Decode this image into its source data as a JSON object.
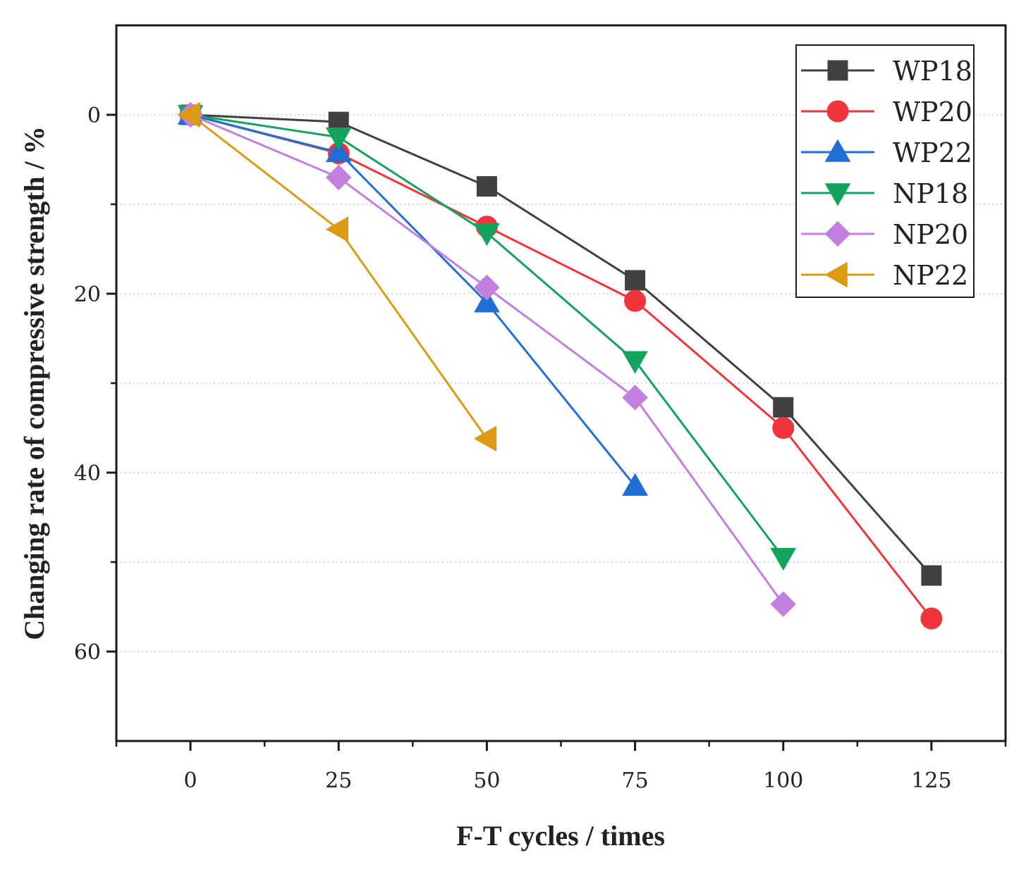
{
  "chart_data": {
    "type": "line",
    "title": "",
    "xlabel": "F-T cycles / times",
    "ylabel": "Changing rate of compressive strength / %",
    "xlim": [
      -12.5,
      137.5
    ],
    "ylim": [
      -10,
      70
    ],
    "y_inverted": true,
    "x_ticks": [
      0,
      25,
      50,
      75,
      100,
      125
    ],
    "x_tick_labels": [
      "0",
      "25",
      "50",
      "75",
      "100",
      "125"
    ],
    "y_ticks": [
      0,
      20,
      40,
      60
    ],
    "y_tick_labels": [
      "0",
      "20",
      "40",
      "60"
    ],
    "gridlines_y": [
      0,
      10,
      20,
      30,
      40,
      50,
      60
    ],
    "grid": "horizontal dotted",
    "legend_position": "top-right",
    "series": [
      {
        "name": "WP18",
        "color": "#404040",
        "marker": "square",
        "x": [
          0,
          25,
          50,
          75,
          100,
          125
        ],
        "values": [
          0,
          0.8,
          8,
          18.5,
          32.7,
          51.5
        ]
      },
      {
        "name": "WP20",
        "color": "#f0343b",
        "marker": "circle",
        "x": [
          0,
          25,
          50,
          75,
          100,
          125
        ],
        "values": [
          0,
          4.3,
          12.5,
          20.8,
          35,
          56.3
        ]
      },
      {
        "name": "WP22",
        "color": "#1f6fd6",
        "marker": "triangle-up",
        "x": [
          0,
          25,
          50,
          75
        ],
        "values": [
          0,
          4.2,
          21,
          41.5
        ]
      },
      {
        "name": "NP18",
        "color": "#12a35c",
        "marker": "triangle-down",
        "x": [
          0,
          25,
          50,
          75,
          100
        ],
        "values": [
          0,
          2.5,
          13.2,
          27.5,
          49.5
        ]
      },
      {
        "name": "NP20",
        "color": "#c27fe0",
        "marker": "diamond",
        "x": [
          0,
          25,
          50,
          75,
          100
        ],
        "values": [
          0,
          7,
          19.3,
          31.6,
          54.7
        ]
      },
      {
        "name": "NP22",
        "color": "#dc9b12",
        "marker": "triangle-left",
        "x": [
          0,
          25,
          50
        ],
        "values": [
          0,
          12.8,
          36.2
        ]
      }
    ]
  }
}
